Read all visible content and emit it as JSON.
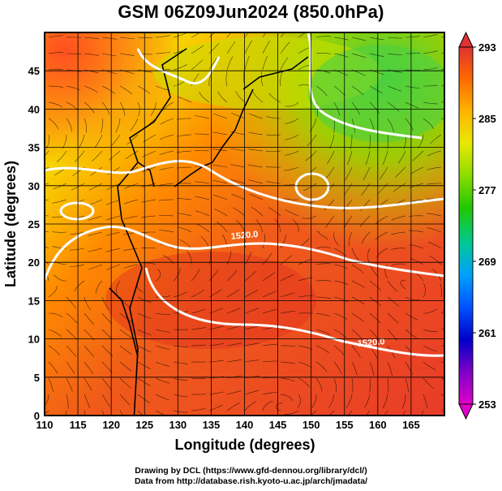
{
  "title": "GSM 06Z09Jun2024 (850.0hPa)",
  "map": {
    "lon_range": [
      110,
      170
    ],
    "lat_range": [
      0,
      50
    ],
    "grid": true,
    "x_ticks": [
      "110",
      "115",
      "120",
      "125",
      "130",
      "135",
      "140",
      "145",
      "150",
      "155",
      "160",
      "165"
    ],
    "y_ticks": [
      "0",
      "5",
      "10",
      "15",
      "20",
      "25",
      "30",
      "35",
      "40",
      "45"
    ],
    "xlabel": "Longitude (degrees)",
    "ylabel": "Latitude  (degrees)",
    "contour_labels": [
      {
        "text": "1520.0",
        "lon": 138,
        "lat": 23
      },
      {
        "text": "1520.0",
        "lon": 157,
        "lat": 9
      }
    ]
  },
  "colorbar": {
    "ticks": [
      "293",
      "285",
      "277",
      "269",
      "261",
      "253"
    ],
    "colors": [
      "#e03232",
      "#ff6a00",
      "#ffb400",
      "#e8e800",
      "#8cdc00",
      "#20c800",
      "#00c896",
      "#00a0ff",
      "#0050ff",
      "#0000c8",
      "#8000c8",
      "#e000c8"
    ]
  },
  "credits": {
    "line1": "Drawing by DCL (https://www.gfd-dennou.org/library/dcl/)",
    "line2": "Data from http://database.rish.kyoto-u.ac.jp/arch/jmadata/"
  }
}
